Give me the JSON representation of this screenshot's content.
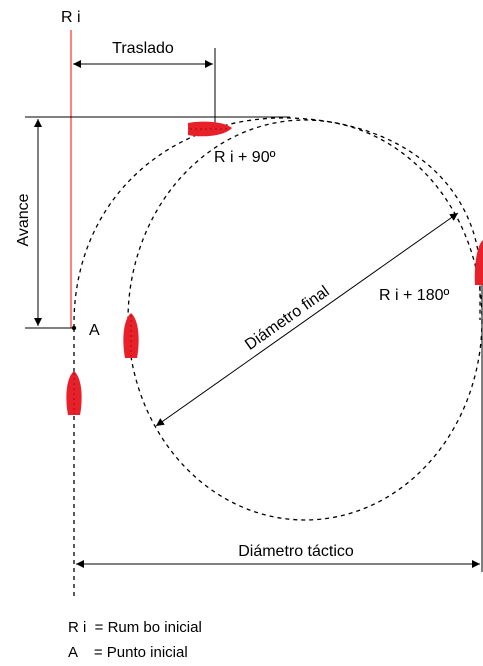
{
  "labels": {
    "ri": "R i",
    "traslado": "Traslado",
    "avance": "Avance",
    "ri90": "R i + 90º",
    "ri180": "R i + 180º",
    "point_a": "A",
    "diametro_final": "Diámetro final",
    "diametro_tactico": "Diámetro táctico"
  },
  "legend": {
    "ri_line": "R i  = Rum bo inicial",
    "a_line": "A    = Punto inicial"
  },
  "colors": {
    "heading_line": "#ff0000",
    "ship": "#e8202a",
    "lines": "#000000"
  }
}
